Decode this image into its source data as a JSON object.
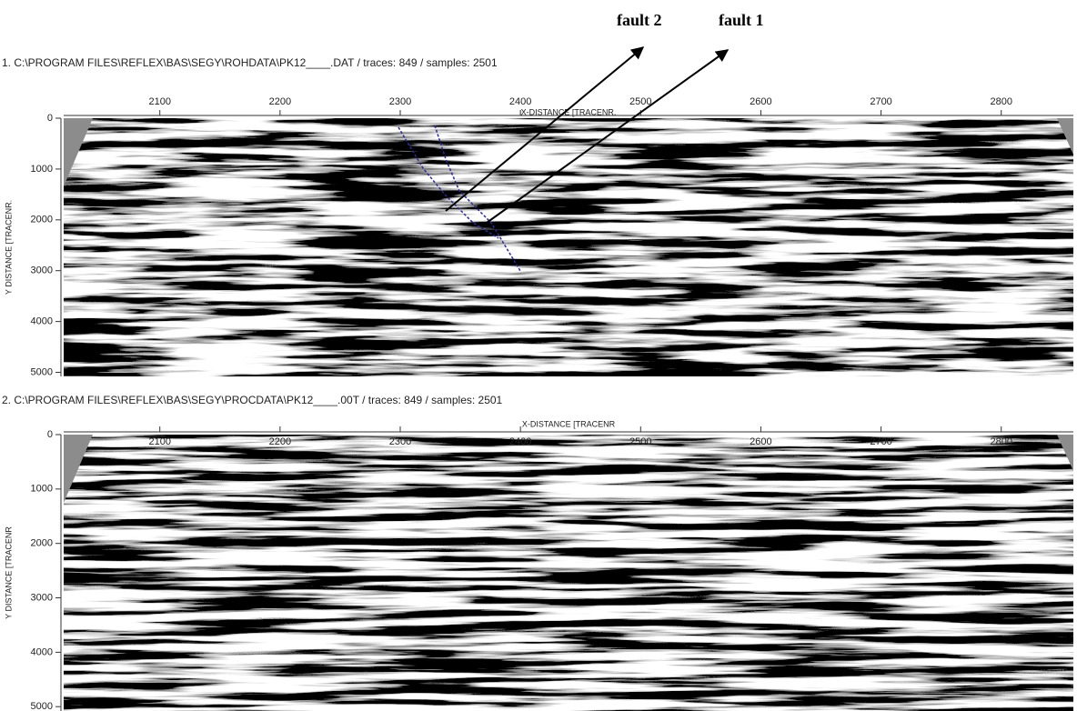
{
  "annotations": [
    "fault 2",
    "fault 1"
  ],
  "panels": [
    {
      "header": "1. C:\\PROGRAM FILES\\REFLEX\\BAS\\SEGY\\ROHDATA\\PK12____.DAT / traces: 849 / samples: 2501",
      "x_label": "X-DISTANCE [TRACENR.",
      "y_label": "Y DISTANCE [TRACENR.",
      "xlim": [
        2020,
        2860
      ],
      "xticks": [
        2100,
        2200,
        2300,
        2400,
        2500,
        2600,
        2700,
        2800
      ],
      "ylim": [
        0,
        5080
      ],
      "yticks": [
        0,
        1000,
        2000,
        3000,
        4000,
        5000
      ]
    },
    {
      "header": "2. C:\\PROGRAM FILES\\REFLEX\\BAS\\SEGY\\PROCDATA\\PK12____.00T / traces: 849 / samples: 2501",
      "x_label": "X-DISTANCE [TRACENR",
      "y_label": "Y DISTANCE [TRACENR",
      "xlim": [
        2020,
        2860
      ],
      "xticks": [
        2100,
        2200,
        2300,
        2400,
        2500,
        2600,
        2700,
        2800
      ],
      "ylim": [
        0,
        5080
      ],
      "yticks": [
        0,
        1000,
        2000,
        3000,
        4000,
        5000
      ]
    }
  ]
}
